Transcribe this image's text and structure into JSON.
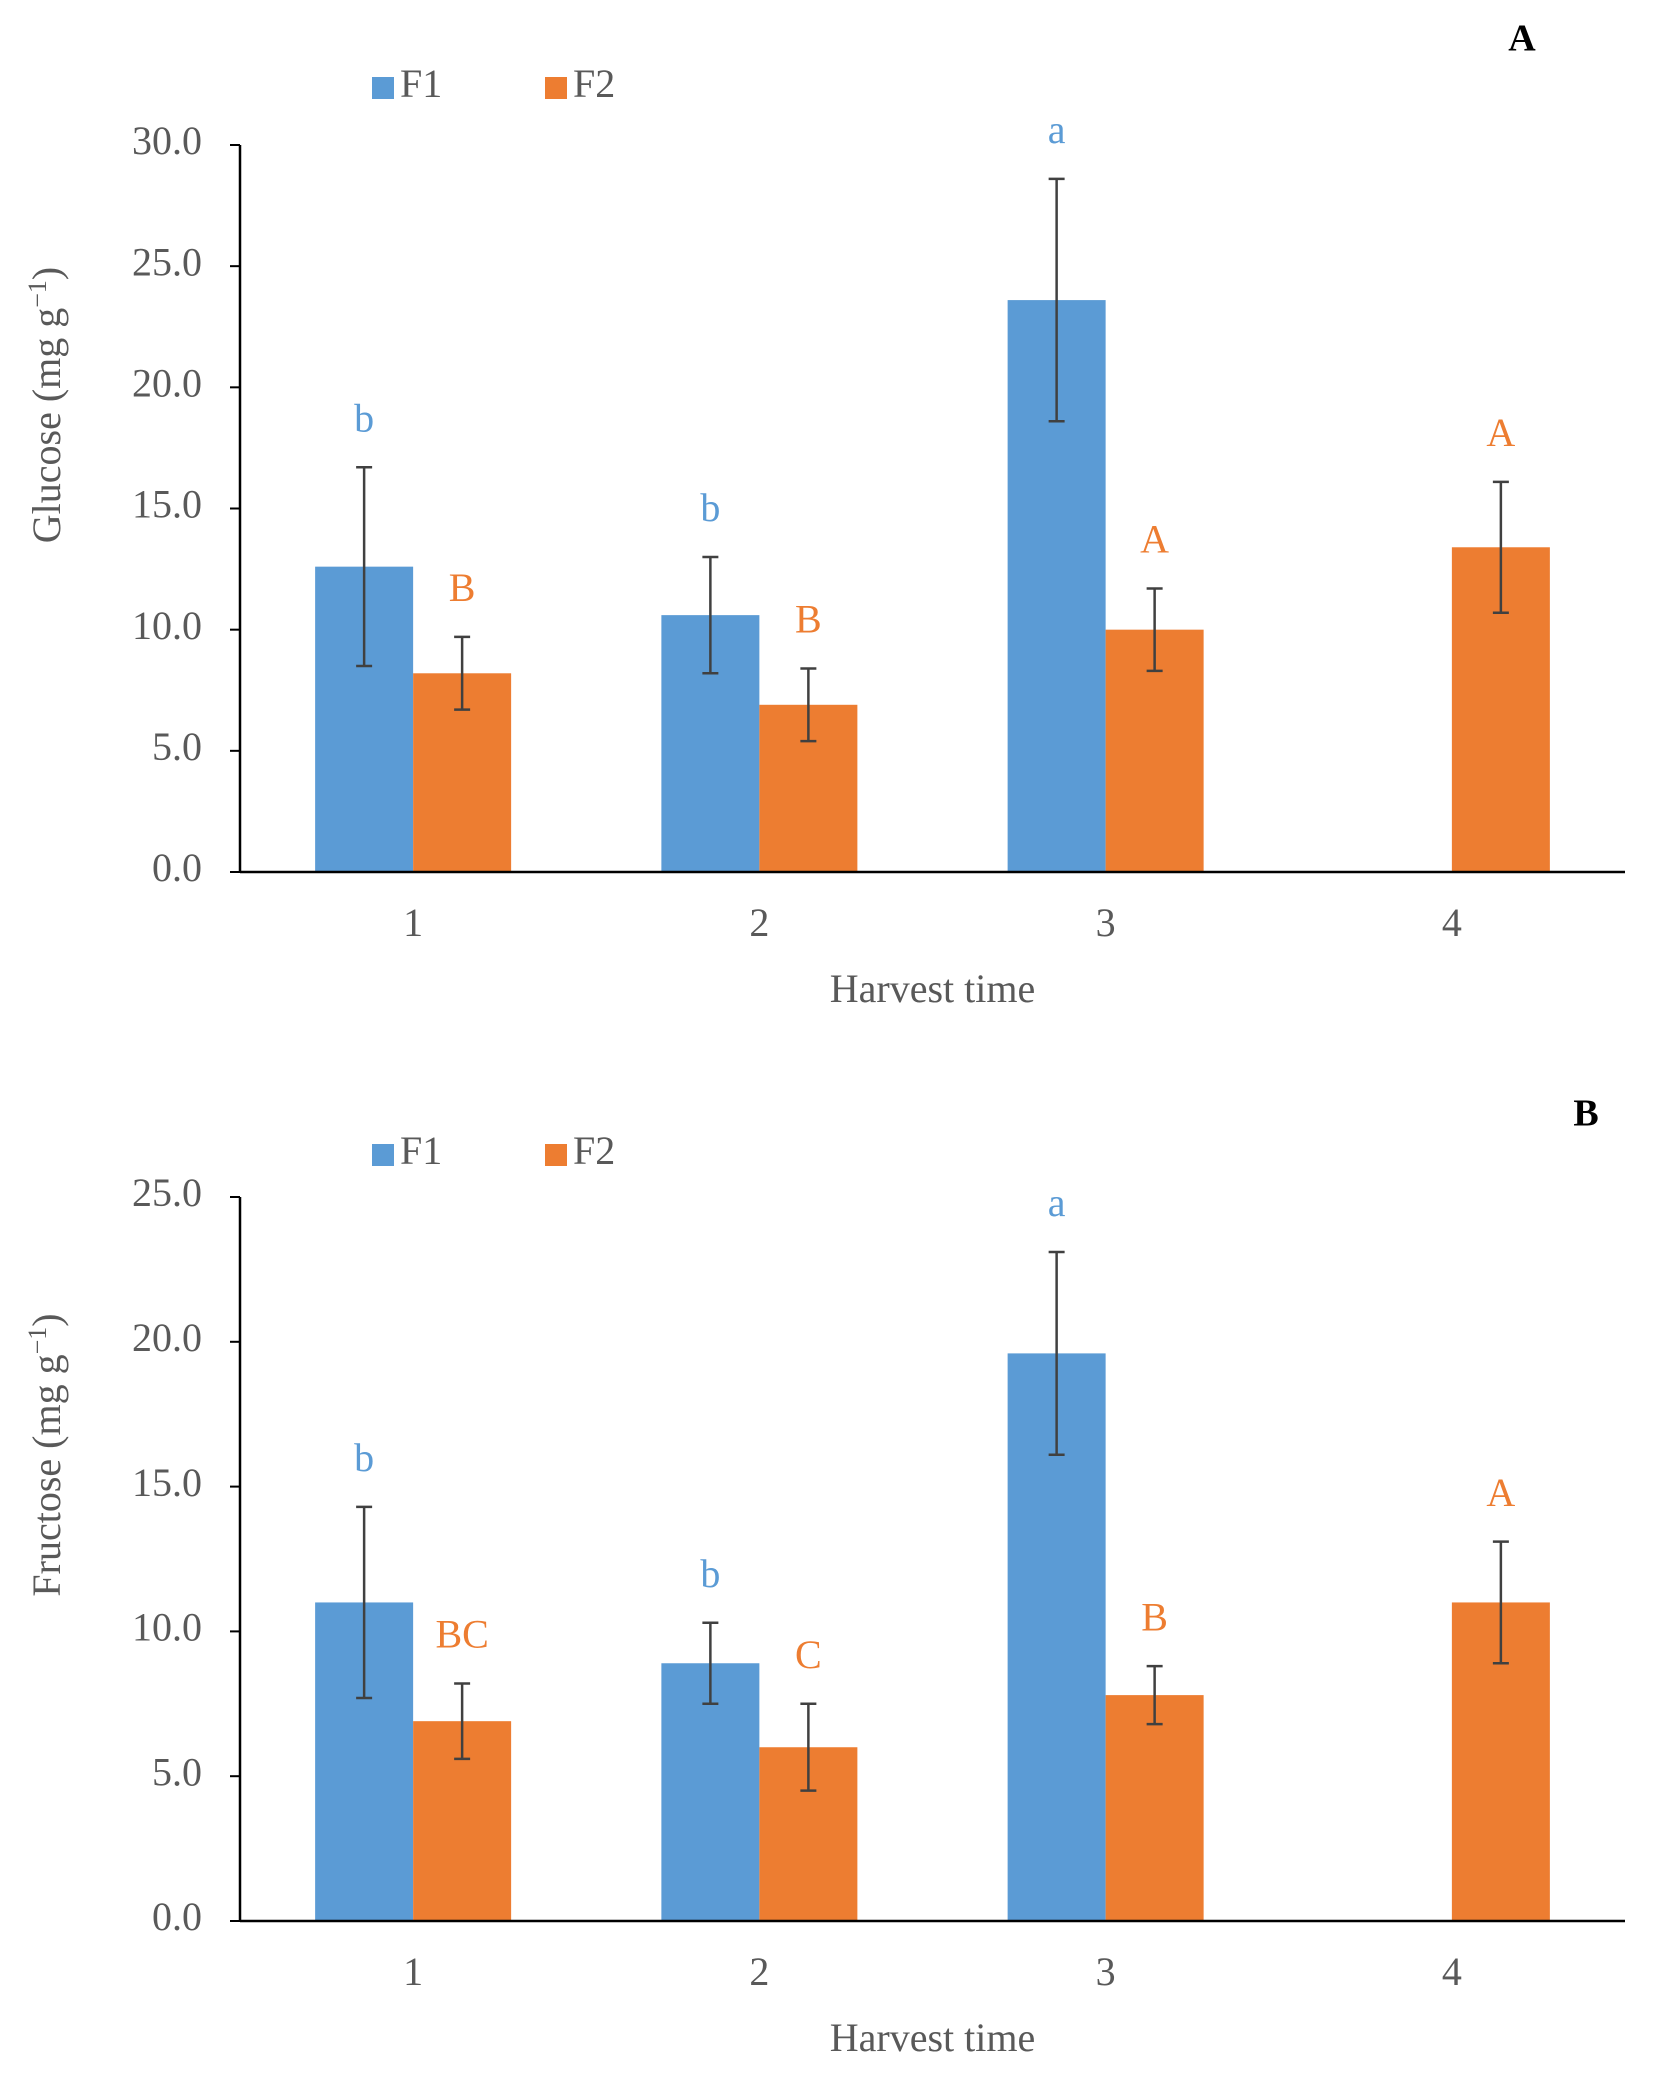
{
  "colors": {
    "F1": "#5b9bd5",
    "F2": "#ed7d31",
    "axis": "#000000",
    "text": "#595959",
    "error_bar": "#404040",
    "panel_label": "#000000"
  },
  "chart_data": [
    {
      "panel_label": "A",
      "type": "bar",
      "xlabel": "Harvest time",
      "ylabel_main": "Glucose (mg g",
      "ylabel_sup": "−1",
      "ylabel_close": ")",
      "categories": [
        "1",
        "2",
        "3",
        "4"
      ],
      "ylim": [
        0,
        30
      ],
      "yticks": [
        "0.0",
        "5.0",
        "10.0",
        "15.0",
        "20.0",
        "25.0",
        "30.0"
      ],
      "legend_position": "top-left",
      "grid": false,
      "series": [
        {
          "name": "F1",
          "values": [
            12.6,
            10.6,
            23.6,
            null
          ],
          "errors": [
            4.1,
            2.4,
            5.0,
            null
          ],
          "letters": [
            "b",
            "b",
            "a",
            null
          ]
        },
        {
          "name": "F2",
          "values": [
            8.2,
            6.9,
            10.0,
            13.4
          ],
          "errors": [
            1.5,
            1.5,
            1.7,
            2.7
          ],
          "letters": [
            "B",
            "B",
            "A",
            "A"
          ]
        }
      ]
    },
    {
      "panel_label": "B",
      "type": "bar",
      "xlabel": "Harvest time",
      "ylabel_main": "Fructose (mg g",
      "ylabel_sup": "−1",
      "ylabel_close": ")",
      "categories": [
        "1",
        "2",
        "3",
        "4"
      ],
      "ylim": [
        0,
        25
      ],
      "yticks": [
        "0.0",
        "5.0",
        "10.0",
        "15.0",
        "20.0",
        "25.0"
      ],
      "legend_position": "top-left",
      "grid": false,
      "series": [
        {
          "name": "F1",
          "values": [
            11.0,
            8.9,
            19.6,
            null
          ],
          "errors": [
            3.3,
            1.4,
            3.5,
            null
          ],
          "letters": [
            "b",
            "b",
            "a",
            null
          ]
        },
        {
          "name": "F2",
          "values": [
            6.9,
            6.0,
            7.8,
            11.0
          ],
          "errors": [
            1.3,
            1.5,
            1.0,
            2.1
          ],
          "letters": [
            "BC",
            "C",
            "B",
            "A"
          ]
        }
      ]
    }
  ]
}
